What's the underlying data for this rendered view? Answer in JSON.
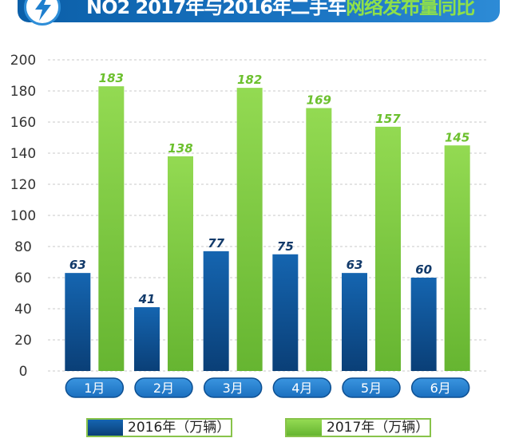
{
  "header": {
    "title_part1": "NO2 2017年与2016年二手车",
    "title_part2": "网络发布量同比"
  },
  "chart_data": {
    "type": "bar",
    "categories": [
      "1月",
      "2月",
      "3月",
      "4月",
      "5月",
      "6月"
    ],
    "series": [
      {
        "name": "2016年（万辆）",
        "values": [
          63,
          41,
          77,
          75,
          63,
          60
        ],
        "color": "#0b5a9e"
      },
      {
        "name": "2017年（万辆）",
        "values": [
          183,
          138,
          182,
          169,
          157,
          145
        ],
        "color": "#7ccc3c"
      }
    ],
    "ylim": [
      0,
      200
    ],
    "yticks": [
      0,
      20,
      40,
      60,
      80,
      100,
      120,
      140,
      160,
      180,
      200
    ],
    "grid": true,
    "legend": "bottom"
  }
}
